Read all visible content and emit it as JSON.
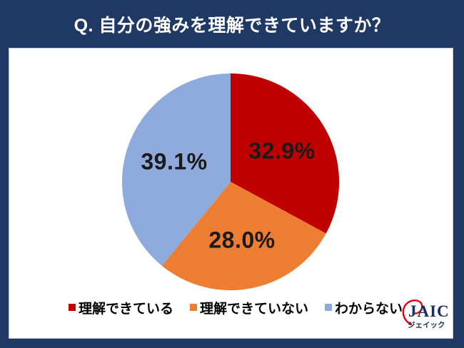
{
  "header": {
    "title": "Q. 自分の強みを理解できていますか？"
  },
  "chart_data": {
    "type": "pie",
    "title": "Q. 自分の強みを理解できていますか？",
    "start_angle_deg": 0,
    "direction": "clockwise",
    "value_suffix": "%",
    "legend_position": "bottom",
    "slices": [
      {
        "label": "理解できている",
        "value": 32.9,
        "color": "#C00000"
      },
      {
        "label": "理解できていない",
        "value": 28.0,
        "color": "#ED7D31"
      },
      {
        "label": "わからない",
        "value": 39.1,
        "color": "#8FAADC"
      }
    ]
  },
  "logo": {
    "name": "JAIC",
    "kana": "ジェイック"
  },
  "colors": {
    "frame": "#1F3864",
    "panel": "#FFFFFF",
    "label_text": "#1A1A1A",
    "logo_navy": "#1A2F63",
    "logo_red": "#E60012"
  }
}
